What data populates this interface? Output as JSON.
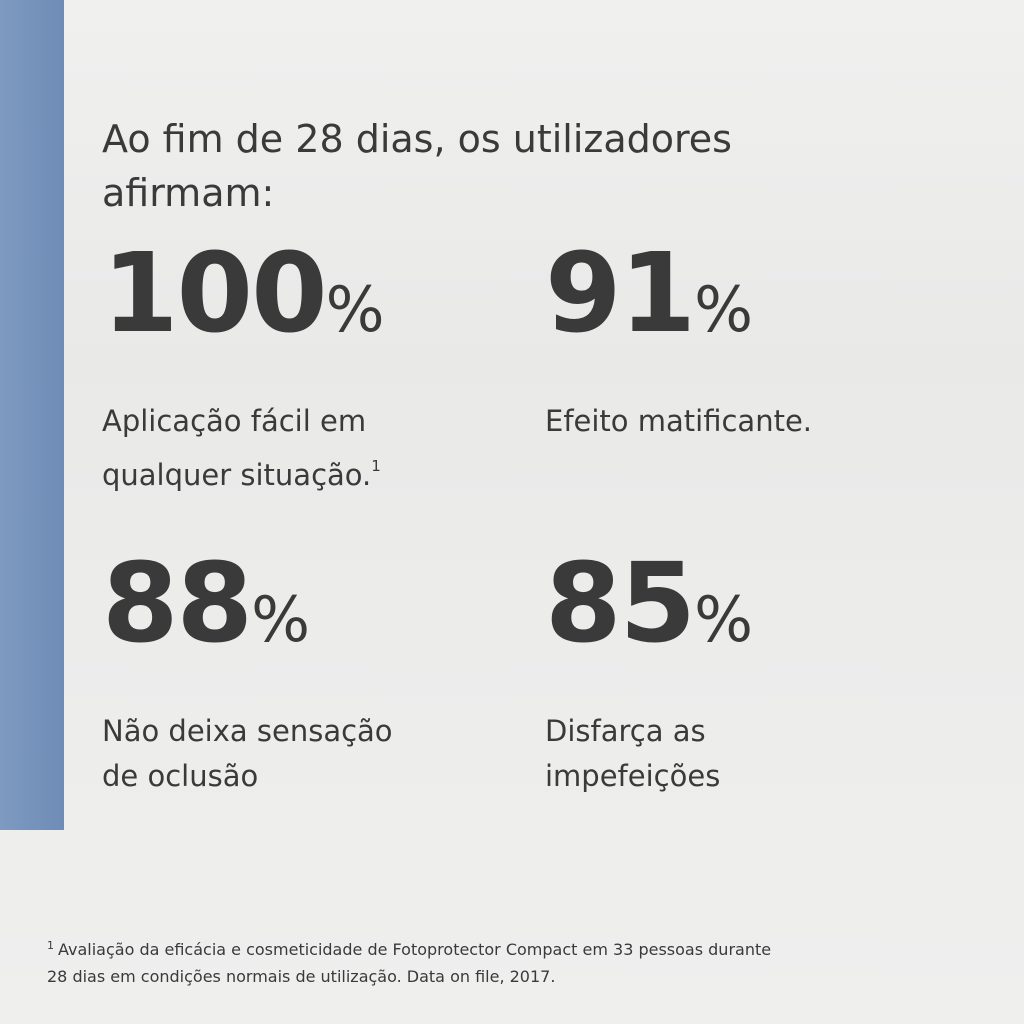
{
  "heading": {
    "lines": [
      "Ao fim de 28 dias, os utilizadores",
      "afirmam:"
    ]
  },
  "stats": [
    {
      "value": 100,
      "unit": "%",
      "label": [
        "Aplicação fácil em",
        "qualquer situação."
      ],
      "note": "1"
    },
    {
      "value": 91,
      "unit": "%",
      "label": [
        "Efeito matificante."
      ]
    },
    {
      "value": 88,
      "unit": "%",
      "label": [
        "Não deixa sensação",
        "de oclusão"
      ]
    },
    {
      "value": 85,
      "unit": "%",
      "label": [
        "Disfarça as",
        "impefeições"
      ]
    }
  ],
  "footnote": {
    "marker": "1",
    "lines": [
      "Avaliação da eficácia e cosmeticidade de Fotoprotector Compact em 33 pessoas durante",
      "28 dias em condições normais de utilização. Data on file, 2017."
    ]
  }
}
